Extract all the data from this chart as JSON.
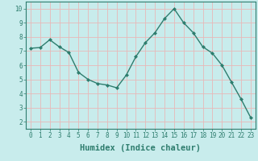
{
  "x": [
    0,
    1,
    2,
    3,
    4,
    5,
    6,
    7,
    8,
    9,
    10,
    11,
    12,
    13,
    14,
    15,
    16,
    17,
    18,
    19,
    20,
    21,
    22,
    23
  ],
  "y": [
    7.2,
    7.25,
    7.8,
    7.3,
    6.9,
    5.5,
    5.0,
    4.7,
    4.6,
    4.4,
    5.3,
    6.6,
    7.6,
    8.3,
    9.3,
    10.0,
    9.0,
    8.3,
    7.3,
    6.85,
    6.0,
    4.8,
    3.6,
    2.3
  ],
  "line_color": "#2e7d6e",
  "marker": "D",
  "marker_size": 2.0,
  "line_width": 1.0,
  "bg_color": "#c8ecec",
  "grid_color": "#e8b8b8",
  "xlabel": "Humidex (Indice chaleur)",
  "xlabel_fontsize": 7.5,
  "xlim": [
    -0.5,
    23.5
  ],
  "ylim": [
    1.5,
    10.5
  ],
  "yticks": [
    2,
    3,
    4,
    5,
    6,
    7,
    8,
    9,
    10
  ],
  "xticks": [
    0,
    1,
    2,
    3,
    4,
    5,
    6,
    7,
    8,
    9,
    10,
    11,
    12,
    13,
    14,
    15,
    16,
    17,
    18,
    19,
    20,
    21,
    22,
    23
  ],
  "tick_fontsize": 5.5,
  "spine_color": "#2e7d6e"
}
